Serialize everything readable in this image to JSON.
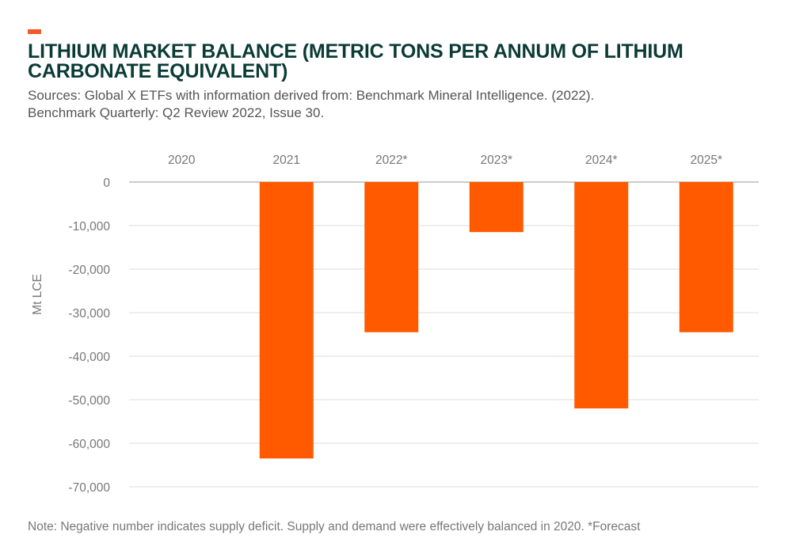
{
  "header": {
    "title_line_1": "LITHIUM MARKET BALANCE (METRIC TONS PER ANNUM OF LITHIUM",
    "title_line_2": "CARBONATE EQUIVALENT)",
    "subtitle_line_1": "Sources: Global X ETFs with information derived from: Benchmark Mineral Intelligence. (2022).",
    "subtitle_line_2": "Benchmark Quarterly: Q2 Review 2022, Issue 30."
  },
  "footer": {
    "note": "Note: Negative number indicates supply deficit. Supply and demand were effectively balanced in 2020. *Forecast"
  },
  "colors": {
    "accent": "#F05A28",
    "bar": "#FF5A00",
    "title": "#0B3B36",
    "gridline": "#DDDDDD",
    "zero_line": "#BBBBBB",
    "tick_text": "#777777"
  },
  "chart_data": {
    "type": "bar",
    "categories": [
      "2020",
      "2021",
      "2022*",
      "2023*",
      "2024*",
      "2025*"
    ],
    "values": [
      0,
      -63500,
      -34500,
      -11500,
      -52000,
      -34500
    ],
    "ylabel": "Mt LCE",
    "xlabel": "",
    "ylim": [
      -70000,
      0
    ],
    "yticks": [
      0,
      -10000,
      -20000,
      -30000,
      -40000,
      -50000,
      -60000,
      -70000
    ],
    "ytick_labels": [
      "0",
      "-10,000",
      "-20,000",
      "-30,000",
      "-40,000",
      "-50,000",
      "-60,000",
      "-70,000"
    ],
    "category_axis_position": "top",
    "grid": true,
    "legend": false
  }
}
